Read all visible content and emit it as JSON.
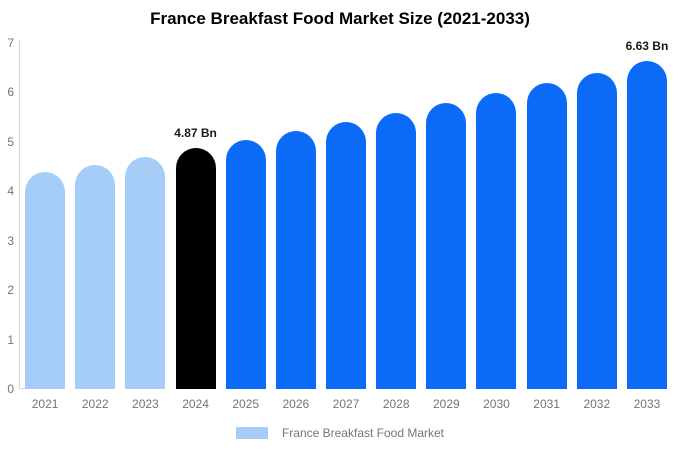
{
  "chart_data": {
    "type": "bar",
    "title": "France Breakfast Food Market Size (2021-2033)",
    "categories": [
      "2021",
      "2022",
      "2023",
      "2024",
      "2025",
      "2026",
      "2027",
      "2028",
      "2029",
      "2030",
      "2031",
      "2032",
      "2033"
    ],
    "values": [
      4.39,
      4.54,
      4.7,
      4.87,
      5.04,
      5.21,
      5.4,
      5.58,
      5.78,
      5.98,
      6.19,
      6.4,
      6.63
    ],
    "bar_colors": [
      "#a5cdf7",
      "#a5cdf7",
      "#a5cdf7",
      "#000000",
      "#0b6bf7",
      "#0b6bf7",
      "#0b6bf7",
      "#0b6bf7",
      "#0b6bf7",
      "#0b6bf7",
      "#0b6bf7",
      "#0b6bf7",
      "#0b6bf7"
    ],
    "value_labels": {
      "2024": "4.87 Bn",
      "2033": "6.63 Bn"
    },
    "xlabel": "",
    "ylabel": "",
    "ylim": [
      0,
      7
    ],
    "yticks": [
      0,
      1,
      2,
      3,
      4,
      5,
      6,
      7
    ],
    "grid": false,
    "legend": {
      "position": "bottom",
      "label": "France Breakfast Food Market",
      "swatch_color": "#a5cdf7"
    },
    "colors": {
      "historical_light_blue": "#a5cdf7",
      "base_year_black": "#000000",
      "forecast_blue": "#0b6bf7",
      "axis_text": "#757575",
      "annotation_text": "#1a1a1a",
      "axis_line": "#d9d9d9",
      "title_text": "#000000",
      "background": "#ffffff"
    }
  }
}
